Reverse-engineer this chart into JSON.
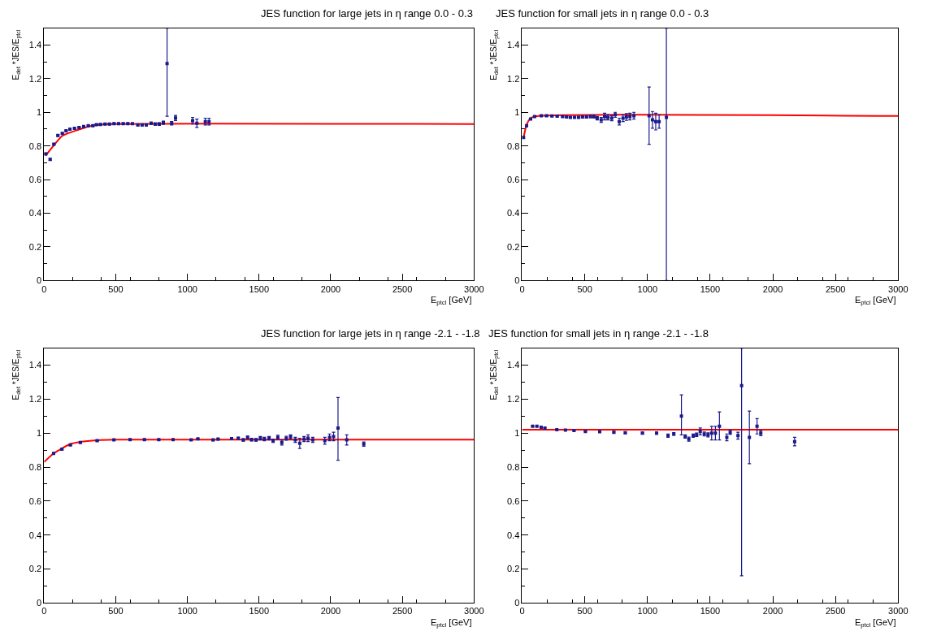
{
  "chart_data": [
    {
      "type": "scatter",
      "title": "JES function for large jets in η range 0.0 - 0.3",
      "xlabel": "E$_{ptcl}$ [GeV]",
      "ylabel": "E$_{det}$ *JES/E$_{ptcl}$",
      "xlim": [
        0,
        3000
      ],
      "xticks": [
        0,
        500,
        1000,
        1500,
        2000,
        2500,
        3000
      ],
      "ylim": [
        0,
        1.5
      ],
      "yticks": [
        0,
        0.2,
        0.4,
        0.6,
        0.8,
        1,
        1.2,
        1.4
      ],
      "series": [
        {
          "marker": "square",
          "color": "#1a1a8c",
          "x": [
            11,
            42,
            68,
            96,
            127,
            153,
            180,
            212,
            244,
            276,
            308,
            340,
            365,
            393,
            425,
            456,
            488,
            520,
            552,
            584,
            616,
            654,
            684,
            713,
            747,
            775,
            803,
            832,
            858,
            890,
            917,
            1036,
            1066,
            1125,
            1151
          ],
          "values": [
            0.753,
            0.72,
            0.81,
            0.862,
            0.875,
            0.89,
            0.9,
            0.905,
            0.91,
            0.915,
            0.92,
            0.92,
            0.927,
            0.928,
            0.93,
            0.93,
            0.933,
            0.933,
            0.933,
            0.933,
            0.932,
            0.925,
            0.925,
            0.925,
            0.935,
            0.93,
            0.93,
            0.938,
            1.29,
            0.935,
            0.966,
            0.95,
            0.935,
            0.945,
            0.945
          ],
          "errors": [
            0.005,
            0.005,
            0.005,
            0.005,
            0.004,
            0.004,
            0.004,
            0.004,
            0.004,
            0.004,
            0.004,
            0.004,
            0.004,
            0.004,
            0.004,
            0.004,
            0.004,
            0.004,
            0.004,
            0.004,
            0.004,
            0.005,
            0.005,
            0.005,
            0.007,
            0.007,
            0.008,
            0.01,
            [
              0.977,
              1.5
            ],
            0.01,
            0.015,
            0.02,
            0.025,
            0.02,
            0.02
          ]
        },
        {
          "type": "line",
          "color": "#ff0000",
          "x": [
            11,
            64,
            127,
            234,
            340,
            467,
            3000
          ],
          "values": [
            0.742,
            0.8,
            0.86,
            0.895,
            0.922,
            0.93,
            0.93
          ]
        }
      ]
    },
    {
      "type": "scatter",
      "title": "JES function for small jets in η range 0.0 - 0.3",
      "xlabel": "E$_{ptcl}$ [GeV]",
      "ylabel": "E$_{det}$ *JES/E$_{ptcl}$",
      "xlim": [
        0,
        3000
      ],
      "xticks": [
        0,
        500,
        1000,
        1500,
        2000,
        2500,
        3000
      ],
      "ylim": [
        0,
        1.5
      ],
      "yticks": [
        0,
        0.2,
        0.4,
        0.6,
        0.8,
        1,
        1.2,
        1.4
      ],
      "series": [
        {
          "marker": "square",
          "color": "#1a1a8c",
          "x": [
            11,
            36,
            68,
            100,
            153,
            195,
            238,
            280,
            323,
            355,
            386,
            418,
            450,
            482,
            514,
            546,
            573,
            599,
            631,
            658,
            684,
            715,
            743,
            775,
            805,
            832,
            860,
            892,
            1013,
            1040,
            1066,
            1093,
            1151
          ],
          "values": [
            0.85,
            0.92,
            0.96,
            0.975,
            0.98,
            0.98,
            0.978,
            0.977,
            0.975,
            0.972,
            0.97,
            0.97,
            0.97,
            0.972,
            0.972,
            0.975,
            0.975,
            0.965,
            0.955,
            0.975,
            0.97,
            0.965,
            0.985,
            0.945,
            0.965,
            0.972,
            0.975,
            0.98,
            0.98,
            0.955,
            0.945,
            0.945,
            0.97
          ],
          "errors": [
            0.005,
            0.005,
            0.004,
            0.004,
            0.004,
            0.004,
            0.004,
            0.004,
            0.004,
            0.004,
            0.004,
            0.004,
            0.005,
            0.005,
            0.006,
            0.007,
            0.008,
            0.01,
            0.015,
            0.02,
            0.015,
            0.015,
            0.015,
            0.02,
            0.02,
            0.02,
            0.02,
            0.02,
            [
              0.81,
              1.15
            ],
            0.05,
            0.05,
            0.04,
            [
              0,
              1.5
            ]
          ]
        },
        {
          "type": "line",
          "color": "#ff0000",
          "x": [
            11,
            36,
            68,
            132,
            3000
          ],
          "values": [
            0.847,
            0.926,
            0.965,
            0.978,
            0.978
          ]
        }
      ]
    },
    {
      "type": "scatter",
      "title": "JES function for large jets in η range -2.1 - -1.8",
      "xlabel": "E$_{ptcl}$ [GeV]",
      "ylabel": "E$_{det}$ *JES/E$_{ptcl}$",
      "xlim": [
        0,
        3000
      ],
      "xticks": [
        0,
        500,
        1000,
        1500,
        2000,
        2500,
        3000
      ],
      "ylim": [
        0,
        1.5
      ],
      "yticks": [
        0,
        0.2,
        0.4,
        0.6,
        0.8,
        1,
        1.2,
        1.4
      ],
      "series": [
        {
          "marker": "square",
          "color": "#1a1a8c",
          "x": [
            66,
            124,
            183,
            253,
            370,
            487,
            600,
            700,
            800,
            900,
            1026,
            1073,
            1179,
            1214,
            1308,
            1355,
            1390,
            1420,
            1448,
            1479,
            1509,
            1537,
            1570,
            1598,
            1631,
            1659,
            1690,
            1720,
            1753,
            1784,
            1814,
            1842,
            1875,
            1959,
            1992,
            2020,
            2051,
            2112,
            2231
          ],
          "values": [
            0.88,
            0.905,
            0.93,
            0.945,
            0.955,
            0.96,
            0.962,
            0.962,
            0.962,
            0.962,
            0.96,
            0.966,
            0.96,
            0.965,
            0.968,
            0.97,
            0.96,
            0.975,
            0.962,
            0.96,
            0.97,
            0.965,
            0.97,
            0.955,
            0.975,
            0.945,
            0.97,
            0.978,
            0.96,
            0.94,
            0.965,
            0.97,
            0.96,
            0.955,
            0.975,
            0.98,
            1.03,
            0.96,
            0.935
          ],
          "errors": [
            0.004,
            0.004,
            0.004,
            0.004,
            0.004,
            0.004,
            0.004,
            0.004,
            0.004,
            0.004,
            0.004,
            0.004,
            0.005,
            0.005,
            0.006,
            0.006,
            0.007,
            0.008,
            0.008,
            0.008,
            0.01,
            0.01,
            0.01,
            0.01,
            0.012,
            0.015,
            0.012,
            0.012,
            0.015,
            0.03,
            0.015,
            0.02,
            0.015,
            0.02,
            0.02,
            0.025,
            [
              0.84,
              1.21
            ],
            0.03,
            0.013
          ]
        },
        {
          "type": "line",
          "color": "#ff0000",
          "x": [
            0,
            66,
            124,
            183,
            253,
            370,
            487,
            3000
          ],
          "values": [
            0.83,
            0.88,
            0.91,
            0.935,
            0.948,
            0.958,
            0.962,
            0.962
          ]
        }
      ]
    },
    {
      "type": "scatter",
      "title": "JES function for small jets in η range -2.1 - -1.8",
      "xlabel": "E$_{ptcl}$ [GeV]",
      "ylabel": "E$_{det}$ *JES/E$_{ptcl}$",
      "xlim": [
        0,
        3000
      ],
      "xticks": [
        0,
        500,
        1000,
        1500,
        2000,
        2500,
        3000
      ],
      "ylim": [
        0,
        1.5
      ],
      "yticks": [
        0,
        0.2,
        0.4,
        0.6,
        0.8,
        1,
        1.2,
        1.4
      ],
      "series": [
        {
          "marker": "square",
          "color": "#1a1a8c",
          "x": [
            84,
            118,
            152,
            182,
            277,
            346,
            414,
            505,
            619,
            732,
            823,
            960,
            1073,
            1164,
            1210,
            1271,
            1301,
            1330,
            1365,
            1392,
            1421,
            1453,
            1483,
            1512,
            1542,
            1574,
            1633,
            1660,
            1722,
            1751,
            1813,
            1874,
            1904,
            2174
          ],
          "values": [
            1.04,
            1.04,
            1.035,
            1.03,
            1.02,
            1.018,
            1.015,
            1.01,
            1.008,
            1.005,
            1.002,
            1.0,
            1.0,
            0.985,
            0.995,
            1.1,
            0.98,
            0.965,
            0.985,
            0.99,
            1.01,
            0.995,
            0.99,
            1.0,
            1.0,
            1.04,
            0.975,
            1.005,
            0.985,
            1.28,
            0.975,
            1.04,
            1.0,
            0.95
          ],
          "errors": [
            null,
            null,
            null,
            null,
            null,
            null,
            null,
            null,
            null,
            0.004,
            0.005,
            0.006,
            0.007,
            0.01,
            0.008,
            [
              0.99,
              1.225
            ],
            0.01,
            0.012,
            0.01,
            0.01,
            0.02,
            0.012,
            0.012,
            0.04,
            0.04,
            [
              0.96,
              1.125
            ],
            0.02,
            0.012,
            0.02,
            [
              0.16,
              1.5
            ],
            [
              0.82,
              1.13
            ],
            [
              0.995,
              1.085
            ],
            0.015,
            0.025
          ]
        },
        {
          "type": "line",
          "color": "#ff0000",
          "x": [
            0,
            3000
          ],
          "values": [
            1.02,
            1.02
          ]
        }
      ]
    }
  ]
}
